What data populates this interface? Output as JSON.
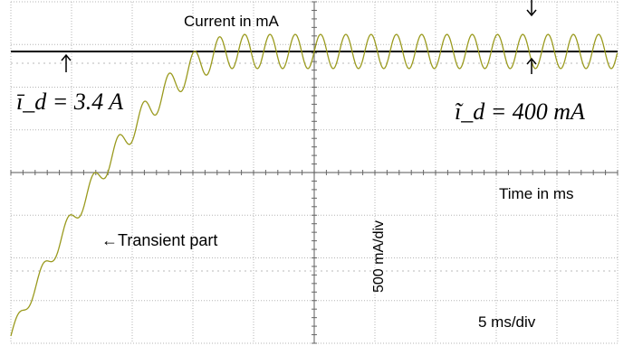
{
  "chart_data": {
    "type": "line",
    "title": "Current in mA",
    "xlabel": "Time in ms",
    "ylabel": "500 mA/div",
    "x_scale_label": "5 ms/div",
    "series": [
      {
        "name": "",
        "color": "#9a9a1e",
        "steady_state_mean_A": 3.4,
        "ripple_pp_mA": 400,
        "ripple_periods_per_div": 2.4,
        "rise_time_divs": 3.6
      }
    ],
    "annotations": {
      "mean_label": "ī_d = 3.4 A",
      "ripple_label": "ĩ_d = 400 mA",
      "transient_label": "←Transient part"
    },
    "grid": true,
    "divisions": {
      "x": 10,
      "y": 8
    }
  }
}
